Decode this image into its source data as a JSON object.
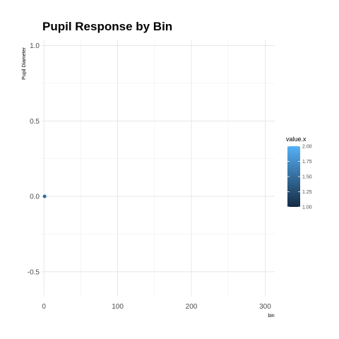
{
  "chart_data": {
    "type": "scatter",
    "title": "Pupil Response by Bin",
    "xlabel": "bin",
    "ylabel": "Pupil Diameter",
    "xlim": [
      -3,
      313
    ],
    "ylim": [
      -0.66,
      1.04
    ],
    "x_ticks": [
      0,
      100,
      200,
      300
    ],
    "x_tick_labels": [
      "0",
      "100",
      "200",
      "300"
    ],
    "y_ticks": [
      -0.5,
      0,
      0.5,
      1
    ],
    "y_tick_labels": [
      "-0.5",
      "0.0",
      "0.5",
      "1.0"
    ],
    "grid": true,
    "series": [
      {
        "x": [
          1,
          1,
          1
        ],
        "y": [
          0,
          0,
          0
        ],
        "color_value": [
          1,
          2,
          1.5
        ]
      }
    ],
    "legend": {
      "title": "value.x",
      "type": "colorbar",
      "position": "right",
      "range": [
        1,
        2
      ],
      "ticks": [
        1,
        1.25,
        1.5,
        1.75,
        2
      ],
      "tick_labels": [
        "1.00",
        "1.25",
        "1.50",
        "1.75",
        "2.00"
      ],
      "low_color": "#132B43",
      "high_color": "#56B1F7"
    }
  }
}
